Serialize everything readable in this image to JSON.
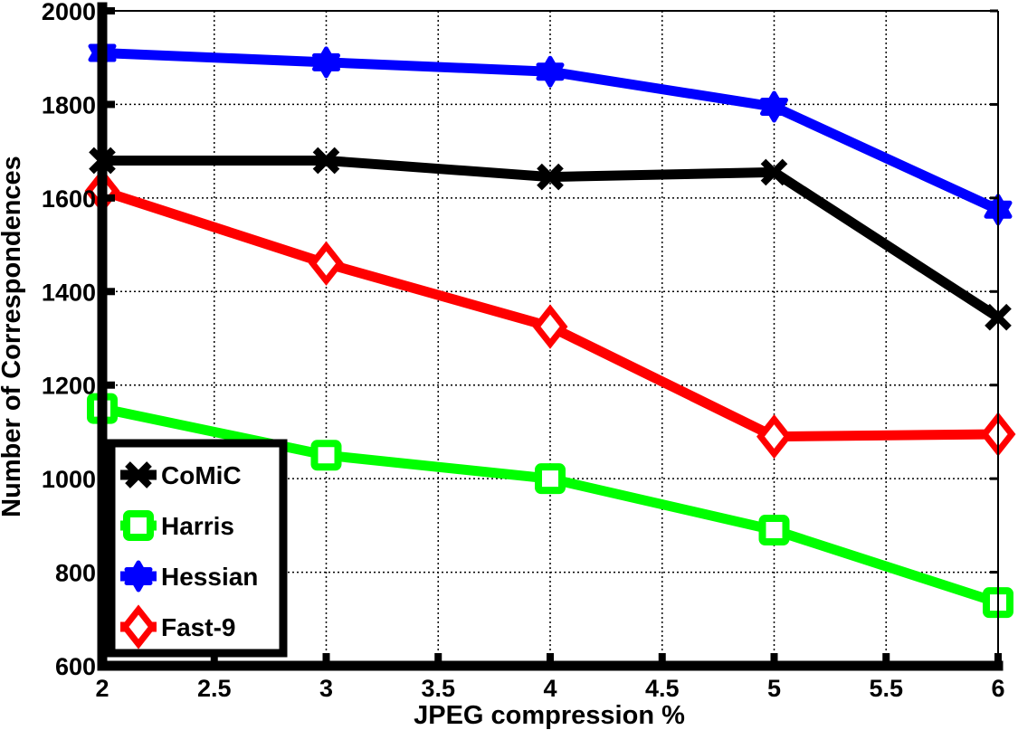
{
  "chart_data": {
    "type": "line",
    "title": "",
    "xlabel": "JPEG compression %",
    "ylabel": "Number of Correspondences",
    "x": [
      2,
      3,
      4,
      5,
      6
    ],
    "xlim": [
      2,
      6
    ],
    "ylim": [
      600,
      2000
    ],
    "xticks": [
      2,
      2.5,
      3,
      3.5,
      4,
      4.5,
      5,
      5.5,
      6
    ],
    "xtick_labels": [
      "2",
      "2.5",
      "3",
      "3.5",
      "4",
      "4.5",
      "5",
      "5.5",
      "6"
    ],
    "yticks": [
      600,
      800,
      1000,
      1200,
      1400,
      1600,
      1800,
      2000
    ],
    "ytick_labels": [
      "600",
      "800",
      "1000",
      "1200",
      "1400",
      "1600",
      "1800",
      "2000"
    ],
    "grid": true,
    "legend_position": "bottom-left",
    "series": [
      {
        "name": "CoMiC",
        "color": "#000000",
        "marker": "x",
        "values": [
          1680,
          1680,
          1645,
          1655,
          1345
        ]
      },
      {
        "name": "Harris",
        "color": "#00ff00",
        "marker": "square",
        "values": [
          1150,
          1050,
          1000,
          890,
          735
        ]
      },
      {
        "name": "Hessian",
        "color": "#0000ff",
        "marker": "hexagram",
        "values": [
          1910,
          1890,
          1870,
          1795,
          1575
        ]
      },
      {
        "name": "Fast-9",
        "color": "#ff0000",
        "marker": "diamond",
        "values": [
          1615,
          1460,
          1325,
          1090,
          1095
        ]
      }
    ]
  }
}
